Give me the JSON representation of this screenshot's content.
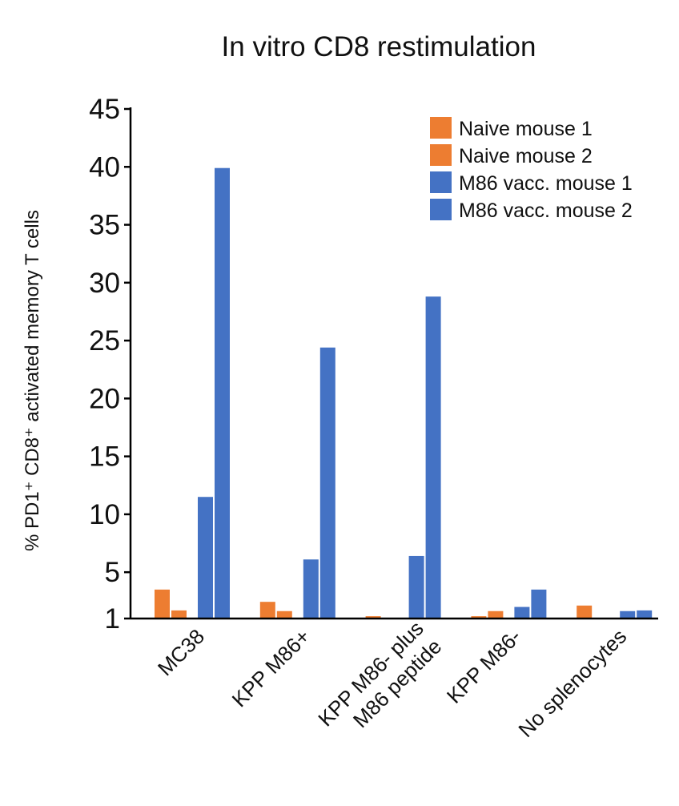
{
  "chart_data": {
    "type": "bar",
    "title": "In vitro CD8 restimulation",
    "ylabel": "% PD1⁺ CD8⁺ activated memory T cells",
    "xlabel": "",
    "ylim": [
      1,
      45
    ],
    "yticks": [
      "1",
      "5",
      "10",
      "15",
      "20",
      "25",
      "30",
      "35",
      "40",
      "45"
    ],
    "ytick_values": [
      1,
      5,
      10,
      15,
      20,
      25,
      30,
      35,
      40,
      45
    ],
    "categories": [
      [
        "MC38"
      ],
      [
        "KPP M86+"
      ],
      [
        "KPP M86- plus",
        "M86 peptide"
      ],
      [
        "KPP M86-"
      ],
      [
        "No splenocytes"
      ]
    ],
    "series": [
      {
        "name": "Naive mouse 1",
        "color": "#ED7D31",
        "values": [
          3.5,
          0.9,
          1.2,
          1.2,
          0.7
        ]
      },
      {
        "name": "Naive mouse 2",
        "color": "#ED7D31",
        "values": [
          1.7,
          0.4,
          0,
          0.4,
          0
        ]
      },
      {
        "name": "M86 vacc. mouse 1",
        "color": "#4472C4",
        "values": [
          11.5,
          6.1,
          6.4,
          2.0,
          0.4
        ]
      },
      {
        "name": "M86 vacc. mouse 2",
        "color": "#4472C4",
        "values": [
          39.9,
          24.4,
          28.8,
          3.5,
          1.7
        ]
      }
    ],
    "legend_position": "top-right",
    "grid": false
  }
}
